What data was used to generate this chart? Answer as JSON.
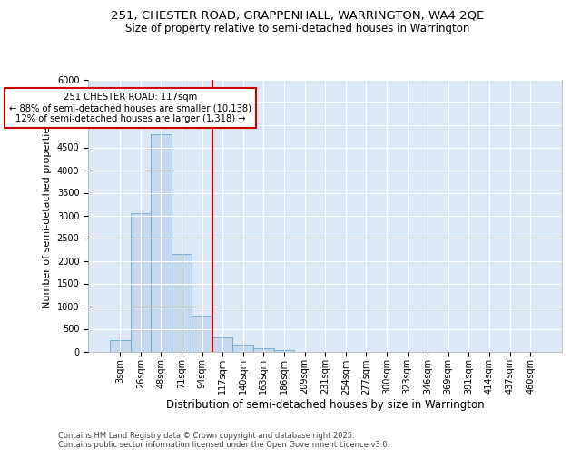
{
  "title_line1": "251, CHESTER ROAD, GRAPPENHALL, WARRINGTON, WA4 2QE",
  "title_line2": "Size of property relative to semi-detached houses in Warrington",
  "xlabel": "Distribution of semi-detached houses by size in Warrington",
  "ylabel": "Number of semi-detached properties",
  "bar_labels": [
    "3sqm",
    "26sqm",
    "48sqm",
    "71sqm",
    "94sqm",
    "117sqm",
    "140sqm",
    "163sqm",
    "186sqm",
    "209sqm",
    "231sqm",
    "254sqm",
    "277sqm",
    "300sqm",
    "323sqm",
    "346sqm",
    "369sqm",
    "391sqm",
    "414sqm",
    "437sqm",
    "460sqm"
  ],
  "bar_values": [
    250,
    3050,
    4800,
    2150,
    800,
    310,
    150,
    70,
    40,
    0,
    0,
    0,
    0,
    0,
    0,
    0,
    0,
    0,
    0,
    0,
    0
  ],
  "bar_color": "#c5d8ee",
  "bar_edgecolor": "#6aaad4",
  "vline_color": "#cc0000",
  "annotation_text": "251 CHESTER ROAD: 117sqm\n← 88% of semi-detached houses are smaller (10,138)\n12% of semi-detached houses are larger (1,318) →",
  "annotation_box_edgecolor": "#cc0000",
  "ylim": [
    0,
    6000
  ],
  "yticks": [
    0,
    500,
    1000,
    1500,
    2000,
    2500,
    3000,
    3500,
    4000,
    4500,
    5000,
    5500,
    6000
  ],
  "bg_color": "#dce8f5",
  "footer_text": "Contains HM Land Registry data © Crown copyright and database right 2025.\nContains public sector information licensed under the Open Government Licence v3.0.",
  "title_fontsize": 9.5,
  "subtitle_fontsize": 8.5,
  "tick_fontsize": 7,
  "xlabel_fontsize": 8.5,
  "ylabel_fontsize": 8.0,
  "footer_fontsize": 6.0
}
